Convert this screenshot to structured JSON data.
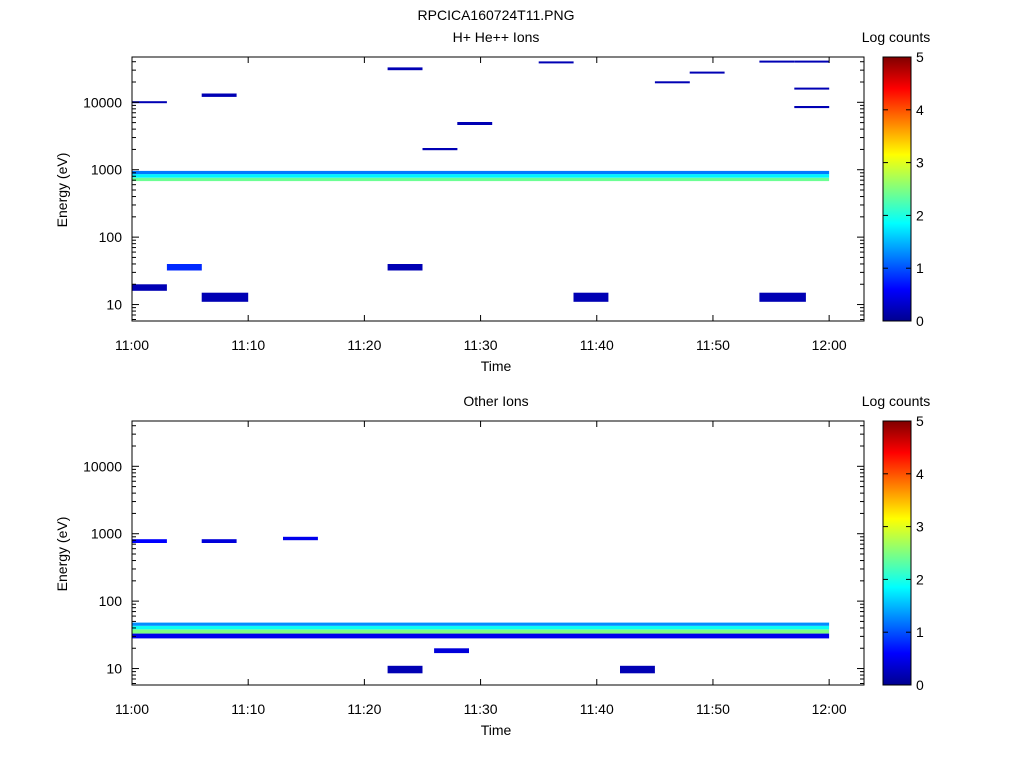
{
  "figure_title": "RPCICA160724T11.PNG",
  "colormap_stops": [
    "#00008f",
    "#0000ff",
    "#00ffff",
    "#80ff80",
    "#ffff00",
    "#ff0000",
    "#800000"
  ],
  "chart_data": [
    {
      "type": "heatmap",
      "title": "H+ He++ Ions",
      "xlabel": "Time",
      "ylabel": "Energy (eV)",
      "y_scale": "log",
      "ylim": [
        5.7,
        47000
      ],
      "xlim": [
        "11:00",
        "12:03"
      ],
      "x_ticks": [
        "11:00",
        "11:10",
        "11:20",
        "11:30",
        "11:40",
        "11:50",
        "12:00"
      ],
      "y_ticks": [
        {
          "value": 10,
          "label": "10"
        },
        {
          "value": 100,
          "label": "100"
        },
        {
          "value": 1000,
          "label": "1000"
        },
        {
          "value": 10000,
          "label": "10000"
        }
      ],
      "colorbar": {
        "label": "Log counts",
        "range": [
          0,
          5
        ],
        "ticks": [
          "0",
          "1",
          "2",
          "3",
          "4",
          "5"
        ]
      },
      "series": [
        {
          "time": [
            "11:00",
            "12:00"
          ],
          "energy_low": 680,
          "energy_high": 760,
          "log_counts": 2.4
        },
        {
          "time": [
            "11:00",
            "12:00"
          ],
          "energy_low": 760,
          "energy_high": 860,
          "log_counts": 1.8
        },
        {
          "time": [
            "11:00",
            "12:00"
          ],
          "energy_low": 860,
          "energy_high": 960,
          "log_counts": 1.2
        },
        {
          "time": [
            "11:00",
            "11:03"
          ],
          "energy_low": 16,
          "energy_high": 20,
          "log_counts": 0.2
        },
        {
          "time": [
            "11:06",
            "11:10"
          ],
          "energy_low": 11,
          "energy_high": 15,
          "log_counts": 0.2
        },
        {
          "time": [
            "11:38",
            "11:41"
          ],
          "energy_low": 11,
          "energy_high": 15,
          "log_counts": 0.2
        },
        {
          "time": [
            "11:54",
            "11:58"
          ],
          "energy_low": 11,
          "energy_high": 15,
          "log_counts": 0.2
        },
        {
          "time": [
            "11:03",
            "11:06"
          ],
          "energy_low": 32,
          "energy_high": 40,
          "log_counts": 0.8
        },
        {
          "time": [
            "11:22",
            "11:25"
          ],
          "energy_low": 32,
          "energy_high": 40,
          "log_counts": 0.2
        },
        {
          "time": [
            "11:06",
            "11:09"
          ],
          "energy_low": 12000,
          "energy_high": 13500,
          "log_counts": 0.2
        },
        {
          "time": [
            "11:22",
            "11:25"
          ],
          "energy_low": 30000,
          "energy_high": 33000,
          "log_counts": 0.2
        },
        {
          "time": [
            "11:00",
            "11:03"
          ],
          "energy_low": 9800,
          "energy_high": 10400,
          "log_counts": 0.2
        },
        {
          "time": [
            "11:28",
            "11:31"
          ],
          "energy_low": 4600,
          "energy_high": 5100,
          "log_counts": 0.2
        },
        {
          "time": [
            "11:25",
            "11:28"
          ],
          "energy_low": 1950,
          "energy_high": 2100,
          "log_counts": 0.2
        },
        {
          "time": [
            "11:45",
            "11:48"
          ],
          "energy_low": 19800,
          "energy_high": 20500,
          "log_counts": 0.2
        },
        {
          "time": [
            "11:48",
            "11:51"
          ],
          "energy_low": 27500,
          "energy_high": 28500,
          "log_counts": 0.2
        },
        {
          "time": [
            "11:35",
            "11:38"
          ],
          "energy_low": 39000,
          "energy_high": 40500,
          "log_counts": 0.2
        },
        {
          "time": [
            "11:57",
            "12:00"
          ],
          "energy_low": 40000,
          "energy_high": 41500,
          "log_counts": 0.2
        },
        {
          "time": [
            "11:54",
            "11:57"
          ],
          "energy_low": 40000,
          "energy_high": 41500,
          "log_counts": 0.2
        },
        {
          "time": [
            "11:57",
            "12:00"
          ],
          "energy_low": 15500,
          "energy_high": 16500,
          "log_counts": 0.2
        },
        {
          "time": [
            "11:57",
            "12:00"
          ],
          "energy_low": 8200,
          "energy_high": 8800,
          "log_counts": 0.2
        }
      ]
    },
    {
      "type": "heatmap",
      "title": "Other Ions",
      "xlabel": "Time",
      "ylabel": "Energy (eV)",
      "y_scale": "log",
      "ylim": [
        5.7,
        47000
      ],
      "xlim": [
        "11:00",
        "12:03"
      ],
      "x_ticks": [
        "11:00",
        "11:10",
        "11:20",
        "11:30",
        "11:40",
        "11:50",
        "12:00"
      ],
      "y_ticks": [
        {
          "value": 10,
          "label": "10"
        },
        {
          "value": 100,
          "label": "100"
        },
        {
          "value": 1000,
          "label": "1000"
        },
        {
          "value": 10000,
          "label": "10000"
        }
      ],
      "colorbar": {
        "label": "Log counts",
        "range": [
          0,
          5
        ],
        "ticks": [
          "0",
          "1",
          "2",
          "3",
          "4",
          "5"
        ]
      },
      "series": [
        {
          "time": [
            "11:00",
            "12:00"
          ],
          "energy_low": 33,
          "energy_high": 38,
          "log_counts": 2.5
        },
        {
          "time": [
            "11:00",
            "12:00"
          ],
          "energy_low": 38,
          "energy_high": 43,
          "log_counts": 1.9
        },
        {
          "time": [
            "11:00",
            "12:00"
          ],
          "energy_low": 43,
          "energy_high": 48,
          "log_counts": 1.3
        },
        {
          "time": [
            "11:00",
            "12:00"
          ],
          "energy_low": 28,
          "energy_high": 33,
          "log_counts": 0.5
        },
        {
          "time": [
            "11:00",
            "11:03"
          ],
          "energy_low": 730,
          "energy_high": 830,
          "log_counts": 0.6
        },
        {
          "time": [
            "11:06",
            "11:09"
          ],
          "energy_low": 730,
          "energy_high": 830,
          "log_counts": 0.4
        },
        {
          "time": [
            "11:13",
            "11:16"
          ],
          "energy_low": 800,
          "energy_high": 900,
          "log_counts": 0.5
        },
        {
          "time": [
            "11:22",
            "11:25"
          ],
          "energy_low": 8.5,
          "energy_high": 11,
          "log_counts": 0.2
        },
        {
          "time": [
            "11:26",
            "11:29"
          ],
          "energy_low": 17,
          "energy_high": 20,
          "log_counts": 0.4
        },
        {
          "time": [
            "11:42",
            "11:45"
          ],
          "energy_low": 8.5,
          "energy_high": 11,
          "log_counts": 0.2
        }
      ]
    }
  ]
}
